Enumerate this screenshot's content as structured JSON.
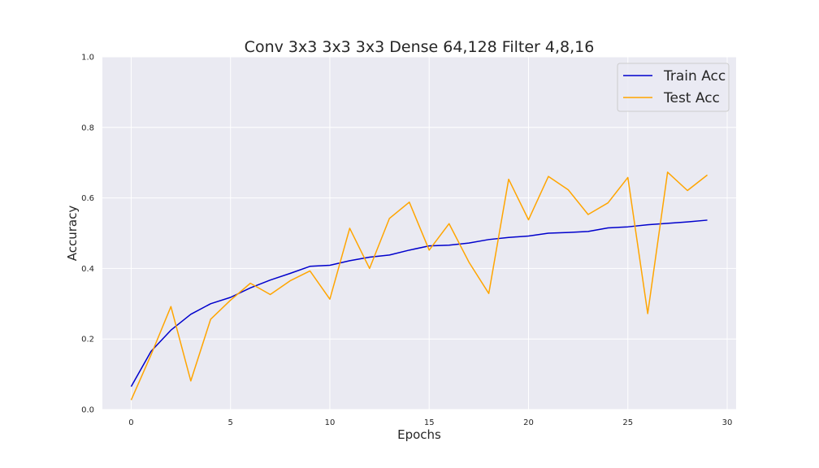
{
  "chart_data": {
    "type": "line",
    "title": "Conv 3x3 3x3 3x3 Dense 64,128 Filter 4,8,16",
    "xlabel": "Epochs",
    "ylabel": "Accuracy",
    "xlim": [
      -1.45,
      30.45
    ],
    "ylim": [
      0.0,
      1.0
    ],
    "xticks": [
      0,
      5,
      10,
      15,
      20,
      25,
      30
    ],
    "yticks": [
      0.0,
      0.2,
      0.4,
      0.6,
      0.8,
      1.0
    ],
    "xtick_labels": [
      "0",
      "5",
      "10",
      "15",
      "20",
      "25",
      "30"
    ],
    "ytick_labels": [
      "0.0",
      "0.2",
      "0.4",
      "0.6",
      "0.8",
      "1.0"
    ],
    "grid": true,
    "legend_position": "top-right",
    "x": [
      0,
      1,
      2,
      3,
      4,
      5,
      6,
      7,
      8,
      9,
      10,
      11,
      12,
      13,
      14,
      15,
      16,
      17,
      18,
      19,
      20,
      21,
      22,
      23,
      24,
      25,
      26,
      27,
      28,
      29
    ],
    "series": [
      {
        "name": "Train Acc",
        "color": "#0000cc",
        "values": [
          0.065,
          0.165,
          0.225,
          0.27,
          0.3,
          0.318,
          0.345,
          0.367,
          0.386,
          0.406,
          0.409,
          0.422,
          0.432,
          0.438,
          0.452,
          0.464,
          0.466,
          0.472,
          0.482,
          0.488,
          0.492,
          0.5,
          0.502,
          0.505,
          0.515,
          0.518,
          0.524,
          0.528,
          0.532,
          0.537
        ]
      },
      {
        "name": "Test Acc",
        "color": "#ffa500",
        "values": [
          0.027,
          0.155,
          0.292,
          0.081,
          0.256,
          0.31,
          0.358,
          0.326,
          0.365,
          0.393,
          0.313,
          0.514,
          0.4,
          0.542,
          0.588,
          0.452,
          0.527,
          0.418,
          0.329,
          0.653,
          0.538,
          0.661,
          0.623,
          0.553,
          0.586,
          0.658,
          0.272,
          0.673,
          0.621,
          0.665
        ]
      }
    ]
  },
  "style": {
    "plot_background": "#eaeaf2",
    "grid_color": "#ffffff",
    "text_color": "#262626"
  }
}
